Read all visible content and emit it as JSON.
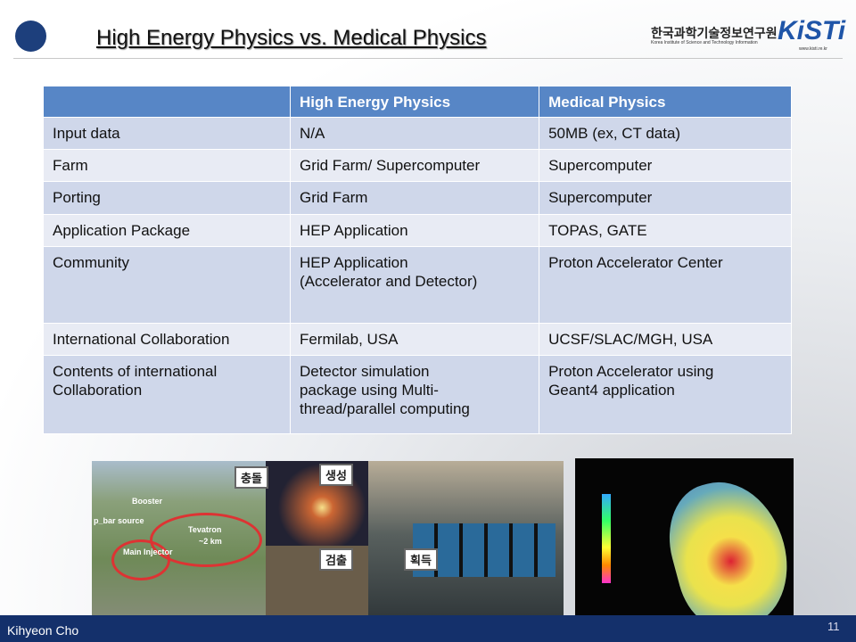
{
  "header": {
    "title": "High Energy Physics vs. Medical Physics",
    "org_korean": "한국과학기술정보연구원",
    "org_english": "Korea Institute of Science and Technology Information",
    "logo": "KiSTi",
    "url": "www.kisti.re.kr"
  },
  "table": {
    "columns": [
      "High Energy Physics",
      "Medical Physics"
    ],
    "rows": [
      [
        "Input data",
        "N/A",
        "50MB (ex, CT data)"
      ],
      [
        "Farm",
        "Grid Farm/ Supercomputer",
        "Supercomputer"
      ],
      [
        "Porting",
        "Grid Farm",
        "Supercomputer"
      ],
      [
        "Application Package",
        "HEP Application",
        "TOPAS, GATE"
      ],
      [
        "Community",
        "HEP Application\n(Accelerator and Detector)",
        "Proton Accelerator Center"
      ],
      [
        "International Collaboration",
        "Fermilab, USA",
        "UCSF/SLAC/MGH, USA"
      ],
      [
        "Contents of international\nCollaboration",
        "Detector simulation\npackage using Multi-\nthread/parallel computing",
        "Proton Accelerator using\nGeant4 application"
      ]
    ]
  },
  "images": {
    "labels": [
      "Booster",
      "p_bar source",
      "Tevatron",
      "Main Injector",
      "~2 km",
      "충돌",
      "생성",
      "검출",
      "획득"
    ]
  },
  "footer": {
    "author": "Kihyeon Cho",
    "page": 11
  }
}
